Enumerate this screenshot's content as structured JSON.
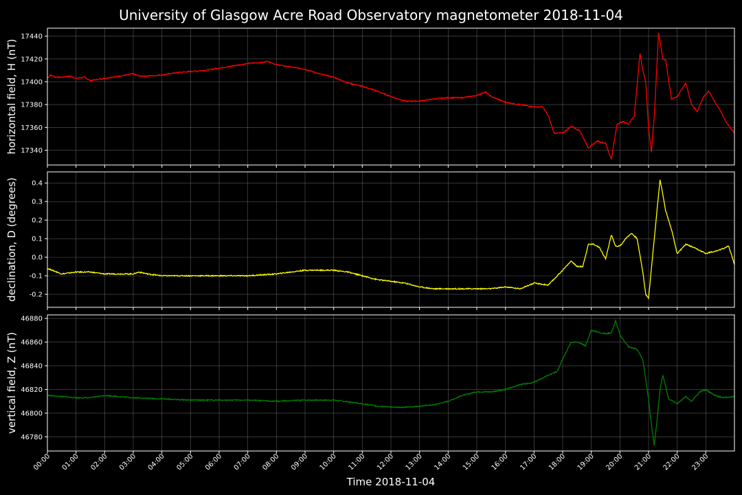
{
  "chart_data": {
    "type": "line",
    "title": "University of Glasgow Acre Road Observatory magnetometer 2018-11-04",
    "xlabel": "Time 2018-11-04",
    "xlim": [
      0,
      24
    ],
    "x_ticks": [
      "00:00",
      "01:00",
      "02:00",
      "03:00",
      "04:00",
      "05:00",
      "06:00",
      "07:00",
      "08:00",
      "09:00",
      "10:00",
      "11:00",
      "12:00",
      "13:00",
      "14:00",
      "15:00",
      "16:00",
      "17:00",
      "18:00",
      "19:00",
      "20:00",
      "21:00",
      "22:00",
      "23:00"
    ],
    "grid": true,
    "panels": [
      {
        "name": "H",
        "ylabel": "horizontal field, H (nT)",
        "color": "#ff0000",
        "ylim": [
          17327,
          17447
        ],
        "y_ticks": [
          17340,
          17360,
          17380,
          17400,
          17420,
          17440
        ],
        "x": [
          0,
          0.1,
          0.3,
          0.5,
          0.8,
          1.0,
          1.3,
          1.5,
          2.0,
          2.5,
          3.0,
          3.2,
          3.5,
          4.0,
          4.5,
          5.0,
          5.5,
          6.0,
          6.5,
          7.0,
          7.5,
          7.7,
          8.0,
          8.5,
          9.0,
          9.5,
          10.0,
          10.5,
          11.0,
          11.5,
          12.0,
          12.5,
          13.0,
          13.5,
          14.0,
          14.5,
          15.0,
          15.3,
          15.5,
          16.0,
          16.5,
          17.0,
          17.3,
          17.5,
          17.7,
          18.0,
          18.3,
          18.6,
          18.9,
          19.2,
          19.5,
          19.7,
          19.9,
          20.1,
          20.3,
          20.5,
          20.7,
          20.8,
          20.9,
          21.0,
          21.1,
          21.2,
          21.35,
          21.5,
          21.6,
          21.8,
          22.0,
          22.3,
          22.5,
          22.7,
          22.9,
          23.1,
          23.3,
          23.5,
          23.7,
          24.0
        ],
        "y": [
          17403,
          17406,
          17404,
          17404,
          17405,
          17403,
          17404,
          17401,
          17403,
          17405,
          17407,
          17405,
          17405,
          17406,
          17408,
          17409,
          17410,
          17412,
          17414,
          17416,
          17417,
          17418,
          17415,
          17413,
          17411,
          17407,
          17404,
          17399,
          17396,
          17392,
          17387,
          17383,
          17383,
          17385,
          17386,
          17386,
          17388,
          17391,
          17387,
          17382,
          17380,
          17378,
          17378,
          17370,
          17355,
          17355,
          17361,
          17357,
          17342,
          17348,
          17346,
          17332,
          17363,
          17365,
          17363,
          17370,
          17425,
          17410,
          17400,
          17360,
          17338,
          17370,
          17443,
          17420,
          17419,
          17385,
          17387,
          17399,
          17380,
          17374,
          17386,
          17392,
          17383,
          17375,
          17365,
          17355
        ]
      },
      {
        "name": "D",
        "ylabel": "declination, D (degrees)",
        "color": "#ffff00",
        "ylim": [
          -0.27,
          0.46
        ],
        "y_ticks": [
          -0.2,
          -0.1,
          0.0,
          0.1,
          0.2,
          0.3,
          0.4
        ],
        "x": [
          0,
          0.5,
          1.0,
          1.5,
          2.0,
          2.5,
          3.0,
          3.2,
          3.5,
          4.0,
          5.0,
          6.0,
          7.0,
          8.0,
          9.0,
          9.5,
          10.0,
          10.5,
          11.0,
          11.5,
          12.0,
          12.5,
          13.0,
          13.5,
          14.0,
          14.5,
          15.0,
          15.5,
          16.0,
          16.5,
          17.0,
          17.5,
          18.0,
          18.3,
          18.5,
          18.7,
          18.9,
          19.1,
          19.3,
          19.5,
          19.7,
          19.85,
          20.0,
          20.2,
          20.4,
          20.6,
          20.8,
          20.9,
          21.0,
          21.2,
          21.4,
          21.6,
          21.8,
          22.0,
          22.3,
          22.6,
          23.0,
          23.5,
          23.8,
          24.0
        ],
        "y": [
          -0.06,
          -0.09,
          -0.08,
          -0.08,
          -0.09,
          -0.09,
          -0.09,
          -0.08,
          -0.09,
          -0.1,
          -0.1,
          -0.1,
          -0.1,
          -0.09,
          -0.07,
          -0.07,
          -0.07,
          -0.08,
          -0.1,
          -0.12,
          -0.13,
          -0.14,
          -0.16,
          -0.17,
          -0.17,
          -0.17,
          -0.17,
          -0.17,
          -0.16,
          -0.17,
          -0.14,
          -0.15,
          -0.07,
          -0.02,
          -0.05,
          -0.05,
          0.07,
          0.07,
          0.05,
          -0.01,
          0.12,
          0.06,
          0.06,
          0.1,
          0.13,
          0.1,
          -0.08,
          -0.2,
          -0.22,
          0.1,
          0.42,
          0.25,
          0.15,
          0.02,
          0.07,
          0.05,
          0.02,
          0.04,
          0.06,
          -0.04
        ]
      },
      {
        "name": "Z",
        "ylabel": "vertical field, Z (nT)",
        "color": "#008000",
        "ylim": [
          46768,
          46883
        ],
        "y_ticks": [
          46780,
          46800,
          46820,
          46840,
          46860,
          46880
        ],
        "x": [
          0,
          0.5,
          1.0,
          1.5,
          2.0,
          3.0,
          4.0,
          5.0,
          6.0,
          7.0,
          8.0,
          9.0,
          10.0,
          11.0,
          11.5,
          12.0,
          12.5,
          13.0,
          13.5,
          14.0,
          14.5,
          15.0,
          15.5,
          16.0,
          16.5,
          17.0,
          17.5,
          17.8,
          18.0,
          18.3,
          18.5,
          18.8,
          19.0,
          19.3,
          19.5,
          19.7,
          19.85,
          20.0,
          20.3,
          20.6,
          20.8,
          21.0,
          21.1,
          21.2,
          21.3,
          21.4,
          21.5,
          21.7,
          22.0,
          22.3,
          22.5,
          22.8,
          23.0,
          23.3,
          23.6,
          24.0
        ],
        "y": [
          46815,
          46814,
          46813,
          46813,
          46815,
          46813,
          46812,
          46811,
          46811,
          46811,
          46810,
          46811,
          46811,
          46808,
          46806,
          46805,
          46805,
          46806,
          46807,
          46810,
          46815,
          46818,
          46818,
          46820,
          46824,
          46826,
          46832,
          46835,
          46846,
          46860,
          46860,
          46857,
          46870,
          46868,
          46867,
          46868,
          46878,
          46866,
          46856,
          46854,
          46845,
          46812,
          46790,
          46773,
          46795,
          46820,
          46832,
          46812,
          46808,
          46814,
          46810,
          46818,
          46820,
          46815,
          46813,
          46814
        ]
      }
    ]
  }
}
